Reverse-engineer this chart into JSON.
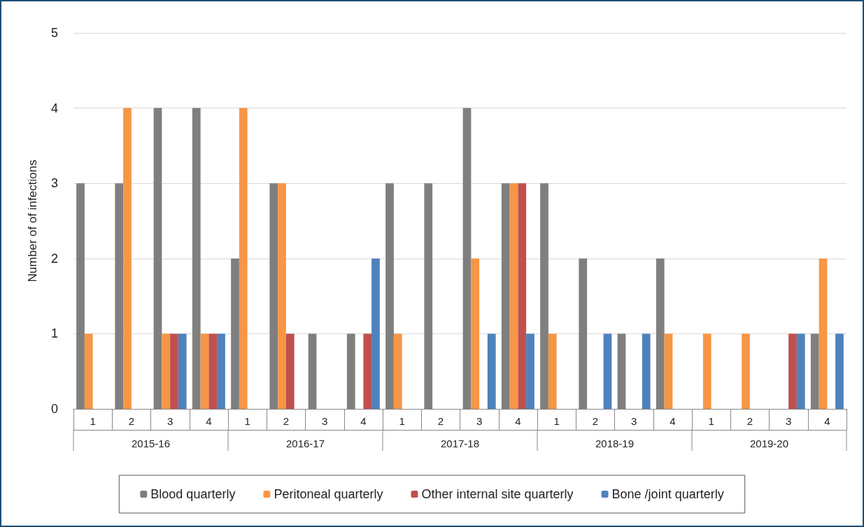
{
  "chart_data": {
    "type": "bar",
    "ylabel": "Number of of infections",
    "categories": [
      "1",
      "2",
      "3",
      "4",
      "1",
      "2",
      "3",
      "4",
      "1",
      "2",
      "3",
      "4",
      "1",
      "2",
      "3",
      "4",
      "1",
      "2",
      "3",
      "4"
    ],
    "annotations": [
      "2015-16",
      "2016-17",
      "2017-18",
      "2018-19",
      "2019-20"
    ],
    "series": [
      {
        "name": "Blood quarterly",
        "color": "#7f7f7f",
        "values": [
          3,
          3,
          4,
          4,
          2,
          3,
          1,
          1,
          3,
          3,
          4,
          3,
          3,
          2,
          1,
          2,
          0,
          0,
          0,
          1
        ]
      },
      {
        "name": "Peritoneal quarterly",
        "color": "#f79646",
        "values": [
          1,
          4,
          1,
          1,
          4,
          3,
          0,
          0,
          1,
          0,
          2,
          3,
          1,
          0,
          0,
          1,
          1,
          1,
          0,
          2
        ]
      },
      {
        "name": "Other internal site quarterly",
        "color": "#c0504d",
        "values": [
          0,
          0,
          1,
          1,
          0,
          1,
          0,
          1,
          0,
          0,
          0,
          3,
          0,
          0,
          0,
          0,
          0,
          0,
          1,
          0
        ]
      },
      {
        "name": "Bone /joint quarterly",
        "color": "#4f81bd",
        "values": [
          0,
          0,
          1,
          1,
          0,
          0,
          0,
          2,
          0,
          0,
          1,
          1,
          0,
          1,
          1,
          0,
          0,
          0,
          1,
          1
        ]
      }
    ],
    "ylim": [
      0,
      5
    ],
    "yticks": [
      0,
      1,
      2,
      3,
      4,
      5
    ],
    "grid": "y",
    "legend": "bottom"
  }
}
